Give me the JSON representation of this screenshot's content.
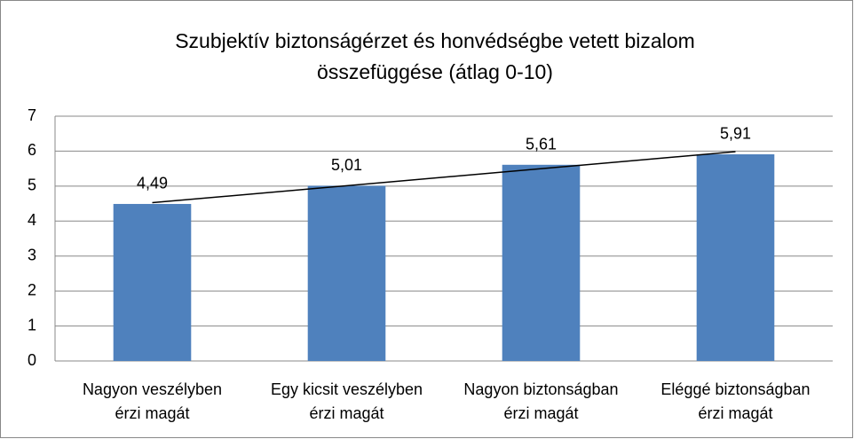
{
  "chart_data": {
    "type": "bar",
    "title": [
      "Szubjektív biztonságérzet és honvédségbe vetett bizalom",
      "összefüggése (átlag 0-10)"
    ],
    "categories": [
      [
        "Nagyon veszélyben",
        "érzi magát"
      ],
      [
        "Egy kicsit veszélyben",
        "érzi magát"
      ],
      [
        "Nagyon biztonságban",
        "érzi magát"
      ],
      [
        "Eléggé biztonságban",
        "érzi magát"
      ]
    ],
    "values": [
      4.49,
      5.01,
      5.61,
      5.91
    ],
    "value_labels": [
      "4,49",
      "5,01",
      "5,61",
      "5,91"
    ],
    "color": "#4f81bd",
    "trendline": "linear",
    "ylim": [
      0,
      7
    ],
    "yticks": [
      0,
      1,
      2,
      3,
      4,
      5,
      6,
      7
    ],
    "grid": true
  }
}
